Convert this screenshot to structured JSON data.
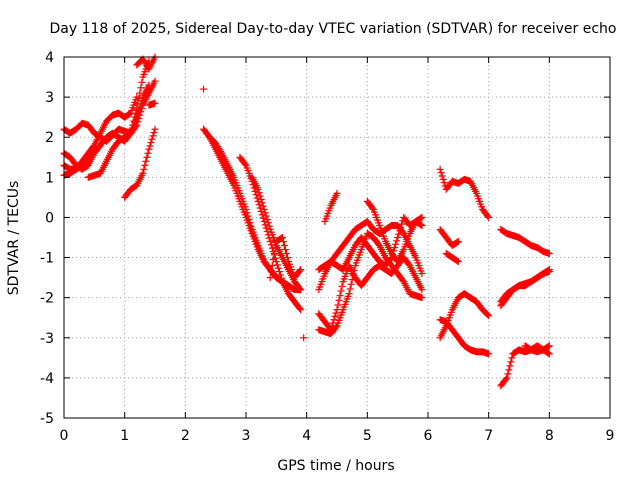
{
  "chart_data": {
    "type": "scatter",
    "title": "Day 118 of 2025, Sidereal Day-to-day VTEC variation (SDTVAR) for receiver echo",
    "xlabel": "GPS time / hours",
    "ylabel": "SDTVAR / TECUs",
    "xlim": [
      0,
      9
    ],
    "ylim": [
      -5,
      4
    ],
    "xticks": [
      "0",
      "1",
      "2",
      "3",
      "4",
      "5",
      "6",
      "7",
      "8",
      "9"
    ],
    "yticks": [
      "-5",
      "-4",
      "-3",
      "-2",
      "-1",
      "0",
      "1",
      "2",
      "3",
      "4"
    ],
    "grid": true,
    "marker": "plus",
    "color": "#ff0000",
    "series": [
      {
        "x": [
          0.0,
          0.1,
          0.2,
          0.3,
          0.4,
          0.5,
          0.6,
          0.7,
          0.8,
          0.9,
          1.0,
          1.1,
          1.2,
          1.3,
          1.4,
          1.5
        ],
        "y": [
          2.2,
          2.1,
          2.2,
          2.35,
          2.3,
          2.1,
          2.0,
          1.9,
          2.05,
          2.2,
          2.15,
          2.1,
          2.3,
          2.8,
          3.1,
          3.4
        ]
      },
      {
        "x": [
          0.0,
          0.1,
          0.2,
          0.3,
          0.4,
          0.5,
          0.6,
          0.7,
          0.8,
          0.9,
          1.0,
          1.1,
          1.2,
          1.3,
          1.4
        ],
        "y": [
          1.6,
          1.5,
          1.3,
          1.2,
          1.3,
          1.6,
          1.8,
          2.0,
          2.1,
          2.0,
          1.9,
          2.1,
          2.5,
          3.0,
          3.3
        ]
      },
      {
        "x": [
          0.0,
          0.1,
          0.2,
          0.3,
          0.4,
          0.5,
          0.6,
          0.7,
          0.8,
          0.9,
          1.0,
          1.1,
          1.2
        ],
        "y": [
          1.3,
          1.2,
          1.2,
          1.4,
          1.6,
          1.8,
          2.1,
          2.4,
          2.55,
          2.6,
          2.5,
          2.6,
          3.0
        ]
      },
      {
        "x": [
          0.0,
          0.1,
          0.2,
          0.3,
          0.4,
          0.5
        ],
        "y": [
          1.05,
          1.1,
          1.2,
          1.3,
          1.5,
          1.7
        ]
      },
      {
        "x": [
          0.4,
          0.5,
          0.6,
          0.7,
          0.8,
          0.9,
          1.0,
          1.1,
          1.2,
          1.3,
          1.4
        ],
        "y": [
          1.0,
          1.05,
          1.1,
          1.4,
          1.7,
          1.9,
          2.0,
          2.1,
          2.7,
          3.5,
          3.9
        ]
      },
      {
        "x": [
          1.0,
          1.1,
          1.2,
          1.3,
          1.4,
          1.5
        ],
        "y": [
          0.5,
          0.7,
          0.8,
          1.1,
          1.7,
          2.2
        ]
      },
      {
        "x": [
          1.2,
          1.3,
          1.4,
          1.5
        ],
        "y": [
          3.8,
          3.95,
          3.7,
          4.0
        ]
      },
      {
        "x": [
          1.4,
          1.5
        ],
        "y": [
          2.8,
          2.85
        ]
      },
      {
        "x": [
          2.3
        ],
        "y": [
          3.2
        ]
      },
      {
        "x": [
          2.3,
          2.4,
          2.5,
          2.6,
          2.7,
          2.8,
          2.9,
          3.0,
          3.1,
          3.2,
          3.3,
          3.4,
          3.5,
          3.6,
          3.7,
          3.8,
          3.9
        ],
        "y": [
          2.2,
          2.0,
          1.85,
          1.6,
          1.3,
          1.0,
          0.6,
          0.2,
          -0.3,
          -0.7,
          -1.1,
          -1.3,
          -1.5,
          -1.6,
          -1.7,
          -1.8,
          -1.8
        ]
      },
      {
        "x": [
          2.4,
          2.5,
          2.6,
          2.7,
          2.8,
          2.9,
          3.0,
          3.1,
          3.2,
          3.3,
          3.4,
          3.5,
          3.6,
          3.7,
          3.8,
          3.9
        ],
        "y": [
          2.0,
          1.7,
          1.4,
          1.1,
          0.8,
          0.4,
          0.0,
          -0.4,
          -0.8,
          -1.1,
          -1.3,
          -1.5,
          -1.6,
          -1.9,
          -2.1,
          -2.3
        ]
      },
      {
        "x": [
          2.9,
          3.0,
          3.1,
          3.2,
          3.3,
          3.4,
          3.5,
          3.6
        ],
        "y": [
          1.5,
          1.3,
          0.9,
          0.4,
          -0.1,
          -0.6,
          -1.1,
          -1.6
        ]
      },
      {
        "x": [
          3.1,
          3.2,
          3.3,
          3.4,
          3.5,
          3.6,
          3.7,
          3.8,
          3.9
        ],
        "y": [
          1.0,
          0.7,
          0.2,
          -0.3,
          -0.7,
          -1.0,
          -1.3,
          -1.6,
          -1.8
        ]
      },
      {
        "x": [
          3.4,
          3.5,
          3.6,
          3.7,
          3.8,
          3.9
        ],
        "y": [
          -1.5,
          -0.6,
          -0.5,
          -1.1,
          -1.5,
          -1.3
        ]
      },
      {
        "x": [
          3.95
        ],
        "y": [
          -3.0
        ]
      },
      {
        "x": [
          4.2,
          4.3,
          4.4,
          4.5,
          4.6,
          4.7,
          4.8,
          4.9,
          5.0,
          5.1,
          5.2,
          5.3,
          5.4,
          5.5,
          5.6,
          5.7,
          5.8,
          5.9
        ],
        "y": [
          -1.3,
          -1.2,
          -1.1,
          -1.2,
          -1.3,
          -1.0,
          -0.7,
          -0.5,
          -0.7,
          -0.9,
          -1.1,
          -1.2,
          -1.0,
          -0.5,
          0.0,
          -0.2,
          -0.1,
          -0.2
        ]
      },
      {
        "x": [
          4.2,
          4.3,
          4.4,
          4.5,
          4.6,
          4.7,
          4.8,
          4.9,
          5.0,
          5.1,
          5.2,
          5.3,
          5.4,
          5.5,
          5.6,
          5.7,
          5.8,
          5.9
        ],
        "y": [
          -2.4,
          -2.6,
          -2.8,
          -2.3,
          -1.6,
          -1.2,
          -1.5,
          -1.7,
          -1.5,
          -1.3,
          -1.2,
          -1.3,
          -1.4,
          -1.2,
          -1.0,
          -1.2,
          -1.5,
          -1.8
        ]
      },
      {
        "x": [
          4.2,
          4.3,
          4.4,
          4.5,
          4.6,
          4.7,
          4.8,
          4.9,
          5.0,
          5.1,
          5.2,
          5.3,
          5.4,
          5.5,
          5.6,
          5.7,
          5.8,
          5.9
        ],
        "y": [
          -2.8,
          -2.85,
          -2.9,
          -2.7,
          -2.3,
          -1.9,
          -1.2,
          -0.8,
          -0.4,
          -0.5,
          -0.7,
          -1.0,
          -1.2,
          -1.4,
          -1.6,
          -1.9,
          -1.95,
          -2.0
        ]
      },
      {
        "x": [
          4.2,
          4.3,
          4.4,
          4.5,
          4.6,
          4.7,
          4.8,
          4.9,
          5.0,
          5.1,
          5.2,
          5.3,
          5.4,
          5.5,
          5.6,
          5.7,
          5.8,
          5.9
        ],
        "y": [
          -1.8,
          -1.4,
          -1.1,
          -0.9,
          -0.7,
          -0.5,
          -0.3,
          -0.2,
          -0.1,
          -0.3,
          -0.4,
          -0.3,
          -0.2,
          -0.2,
          -0.4,
          -0.7,
          -1.0,
          -1.4
        ]
      },
      {
        "x": [
          4.3,
          4.4,
          4.5
        ],
        "y": [
          -0.1,
          0.3,
          0.6
        ]
      },
      {
        "x": [
          5.0,
          5.1,
          5.2,
          5.3,
          5.4,
          5.5,
          5.6,
          5.7,
          5.8,
          5.9
        ],
        "y": [
          0.4,
          0.2,
          -0.2,
          -0.6,
          -0.9,
          -1.1,
          -0.8,
          -0.4,
          -0.1,
          0.0
        ]
      },
      {
        "x": [
          6.2,
          6.3,
          6.4,
          6.5,
          6.6,
          6.7,
          6.8,
          6.9,
          7.0
        ],
        "y": [
          1.2,
          0.7,
          0.9,
          0.85,
          0.95,
          0.9,
          0.6,
          0.2,
          0.0
        ]
      },
      {
        "x": [
          6.2,
          6.3,
          6.4,
          6.5
        ],
        "y": [
          -0.3,
          -0.5,
          -0.7,
          -0.6
        ]
      },
      {
        "x": [
          6.3,
          6.4,
          6.5
        ],
        "y": [
          -0.9,
          -1.0,
          -1.1
        ]
      },
      {
        "x": [
          6.2,
          6.3,
          6.4,
          6.5,
          6.6,
          6.7,
          6.8,
          6.9,
          7.0
        ],
        "y": [
          -3.0,
          -2.7,
          -2.3,
          -2.0,
          -1.9,
          -2.0,
          -2.1,
          -2.3,
          -2.45
        ]
      },
      {
        "x": [
          6.2,
          6.3,
          6.4,
          6.5,
          6.6,
          6.7,
          6.8,
          6.9,
          7.0
        ],
        "y": [
          -2.55,
          -2.6,
          -2.8,
          -3.0,
          -3.2,
          -3.3,
          -3.35,
          -3.35,
          -3.4
        ]
      },
      {
        "x": [
          7.2,
          7.3,
          7.4,
          7.5,
          7.6,
          7.7,
          7.8,
          7.9,
          8.0
        ],
        "y": [
          -0.3,
          -0.4,
          -0.45,
          -0.5,
          -0.6,
          -0.7,
          -0.75,
          -0.85,
          -0.9
        ]
      },
      {
        "x": [
          7.2,
          7.3,
          7.4,
          7.5,
          7.6,
          7.7,
          7.8,
          7.9,
          8.0
        ],
        "y": [
          -2.1,
          -1.9,
          -1.8,
          -1.7,
          -1.65,
          -1.6,
          -1.5,
          -1.4,
          -1.35
        ]
      },
      {
        "x": [
          7.2,
          7.3,
          7.4,
          7.5,
          7.6,
          7.7,
          7.8,
          7.9,
          8.0
        ],
        "y": [
          -2.2,
          -2.0,
          -1.8,
          -1.7,
          -1.7,
          -1.6,
          -1.5,
          -1.4,
          -1.3
        ]
      },
      {
        "x": [
          7.2,
          7.3,
          7.4,
          7.5,
          7.6,
          7.7,
          7.8,
          7.9,
          8.0
        ],
        "y": [
          -4.2,
          -4.0,
          -3.4,
          -3.3,
          -3.35,
          -3.3,
          -3.35,
          -3.3,
          -3.4
        ]
      },
      {
        "x": [
          7.6,
          7.7,
          7.8,
          7.9,
          8.0
        ],
        "y": [
          -3.2,
          -3.3,
          -3.2,
          -3.3,
          -3.2
        ]
      }
    ]
  }
}
